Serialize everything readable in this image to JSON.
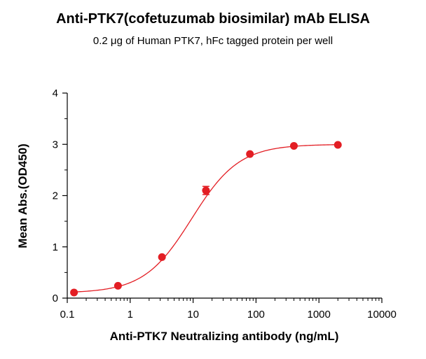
{
  "chart_data": {
    "type": "scatter",
    "title": "Anti-PTK7(cofetuzumab biosimilar) mAb ELISA",
    "subtitle": "0.2 μg of Human PTK7, hFc tagged protein per well",
    "xlabel": "Anti-PTK7 Neutralizing antibody (ng/mL)",
    "ylabel": "Mean Abs.(OD450)",
    "xscale": "log",
    "xlim": [
      0.1,
      10000
    ],
    "ylim": [
      0,
      4
    ],
    "xticks": [
      "0.1",
      "1",
      "10",
      "100",
      "1000",
      "10000"
    ],
    "yticks": [
      "0",
      "1",
      "2",
      "3",
      "4"
    ],
    "grid": false,
    "series": [
      {
        "color": "#e31e24",
        "x": [
          0.128,
          0.64,
          3.2,
          16,
          80,
          400,
          2000
        ],
        "y": [
          0.11,
          0.24,
          0.8,
          2.1,
          2.81,
          2.97,
          2.99
        ],
        "error": [
          0.01,
          0.01,
          0.02,
          0.08,
          0.02,
          0.01,
          0.01
        ]
      }
    ],
    "fit": {
      "type": "4PL",
      "bottom": 0.1,
      "top": 3.0,
      "ec50": 9.5,
      "hill": 1.15
    }
  }
}
